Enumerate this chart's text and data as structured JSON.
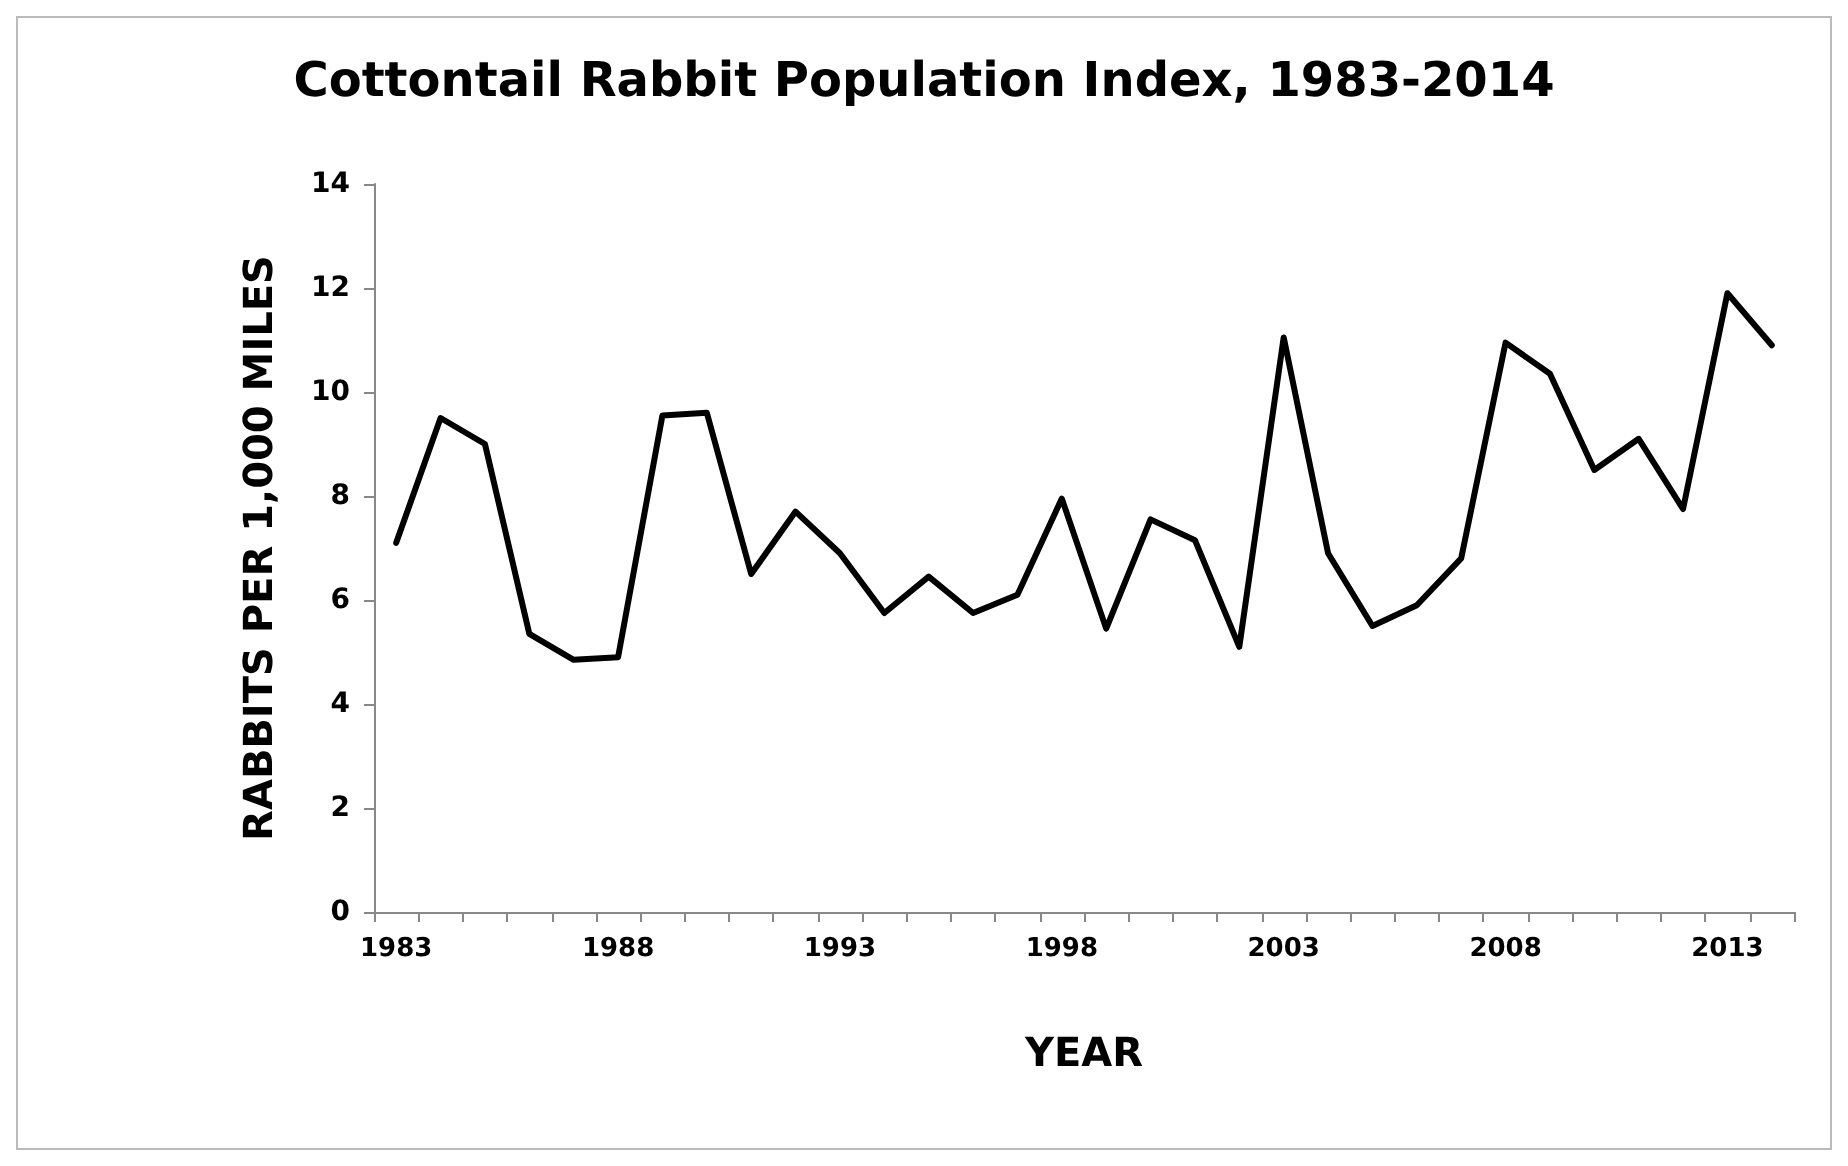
{
  "chart_data": {
    "type": "line",
    "title": "Cottontail Rabbit Population Index, 1983-2014",
    "xlabel": "YEAR",
    "ylabel": "RABBITS PER 1,000 MILES",
    "categories": [
      "1983",
      null,
      null,
      null,
      null,
      "1988",
      null,
      null,
      null,
      null,
      "1993",
      null,
      null,
      null,
      null,
      "1998",
      null,
      null,
      null,
      null,
      "2003",
      null,
      null,
      null,
      null,
      "2008",
      null,
      null,
      null,
      null,
      "2013",
      null
    ],
    "series": [
      {
        "color": "#000000",
        "values": [
          7.1,
          9.5,
          9.0,
          5.35,
          4.85,
          4.9,
          9.55,
          9.6,
          6.5,
          7.7,
          6.9,
          5.75,
          6.45,
          5.75,
          6.1,
          7.95,
          5.45,
          7.55,
          7.15,
          5.1,
          11.05,
          6.9,
          5.5,
          5.9,
          6.8,
          10.95,
          10.35,
          8.5,
          9.1,
          7.75,
          11.9,
          10.9
        ]
      }
    ],
    "ylim": [
      0,
      14
    ],
    "yticks": [
      0,
      2,
      4,
      6,
      8,
      10,
      12,
      14
    ],
    "grid": false,
    "marker": "none",
    "line_style": "solid"
  }
}
